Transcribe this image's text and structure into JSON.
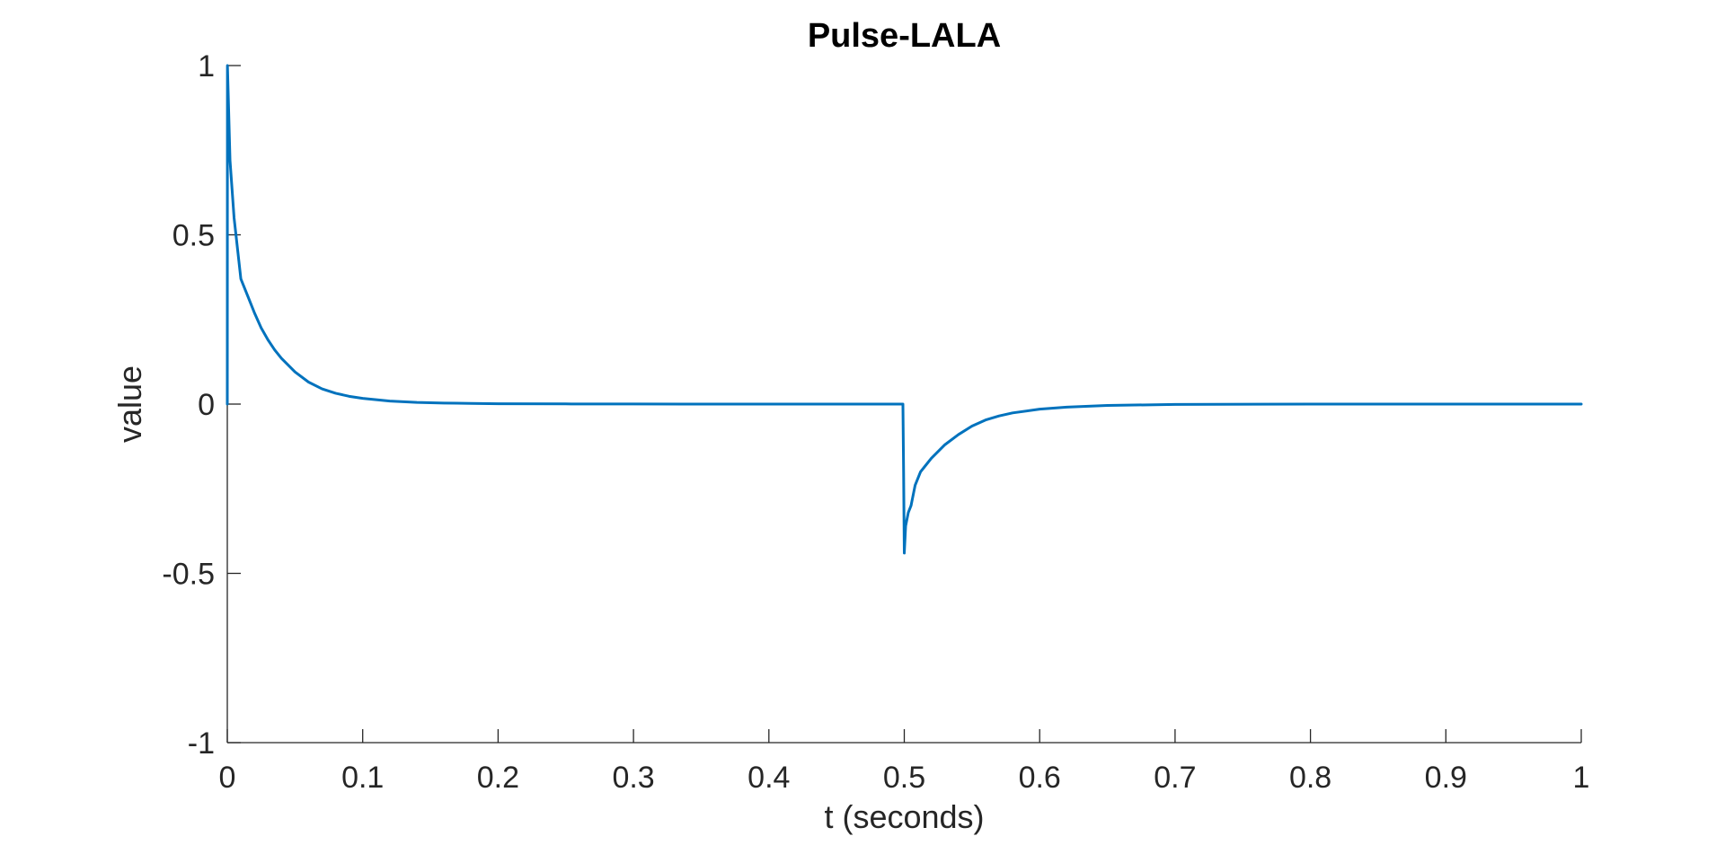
{
  "chart_data": {
    "type": "line",
    "title": "Pulse-LALA",
    "xlabel": "t (seconds)",
    "ylabel": "value",
    "xlim": [
      0,
      1
    ],
    "ylim": [
      -1,
      1
    ],
    "xticks": [
      0,
      0.1,
      0.2,
      0.3,
      0.4,
      0.5,
      0.6,
      0.7,
      0.8,
      0.9,
      1
    ],
    "xtick_labels": [
      "0",
      "0.1",
      "0.2",
      "0.3",
      "0.4",
      "0.5",
      "0.6",
      "0.7",
      "0.8",
      "0.9",
      "1"
    ],
    "yticks": [
      -1,
      -0.5,
      0,
      0.5,
      1
    ],
    "ytick_labels": [
      "-1",
      "-0.5",
      "0",
      "0.5",
      "1"
    ],
    "grid": false,
    "box": false,
    "series": [
      {
        "color": "#0072BD",
        "x": [
          0,
          0.0001,
          0.002,
          0.005,
          0.01,
          0.015,
          0.02,
          0.025,
          0.03,
          0.035,
          0.04,
          0.05,
          0.06,
          0.07,
          0.08,
          0.09,
          0.1,
          0.12,
          0.14,
          0.16,
          0.18,
          0.2,
          0.25,
          0.3,
          0.4,
          0.499,
          0.4995,
          0.5,
          0.501,
          0.503,
          0.505,
          0.508,
          0.512,
          0.515,
          0.52,
          0.53,
          0.54,
          0.55,
          0.56,
          0.57,
          0.58,
          0.6,
          0.62,
          0.65,
          0.7,
          0.8,
          0.9,
          1.0
        ],
        "y": [
          0,
          1.0,
          0.72,
          0.55,
          0.37,
          0.32,
          0.27,
          0.225,
          0.19,
          0.16,
          0.135,
          0.095,
          0.065,
          0.045,
          0.032,
          0.023,
          0.017,
          0.009,
          0.005,
          0.003,
          0.002,
          0.001,
          0.0005,
          0.0002,
          0.0,
          0.0,
          -0.2,
          -0.44,
          -0.36,
          -0.32,
          -0.3,
          -0.24,
          -0.2,
          -0.185,
          -0.16,
          -0.12,
          -0.09,
          -0.065,
          -0.047,
          -0.035,
          -0.026,
          -0.015,
          -0.009,
          -0.004,
          -0.001,
          0.0,
          0.0,
          0.0
        ]
      }
    ]
  }
}
